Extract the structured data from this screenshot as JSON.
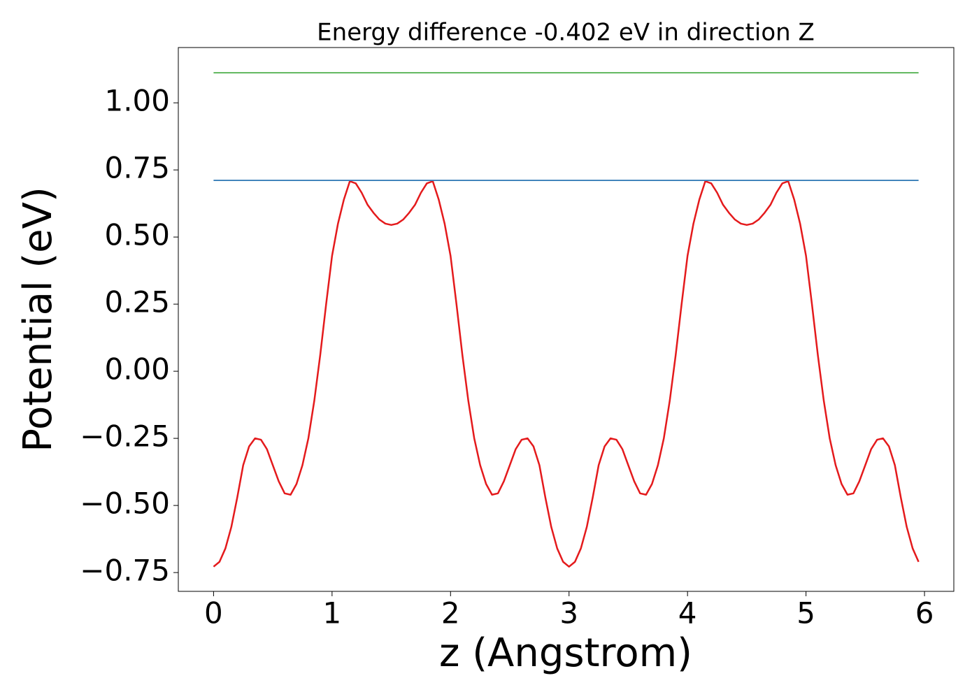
{
  "chart_data": {
    "type": "line",
    "title": "Energy difference -0.402 eV in direction Z",
    "xlabel": "z (Angstrom)",
    "ylabel": "Potential (eV)",
    "xlim": [
      -0.2975,
      6.2475
    ],
    "ylim": [
      -0.82,
      1.206
    ],
    "xticks": [
      0,
      1,
      2,
      3,
      4,
      5,
      6
    ],
    "yticks": [
      {
        "value": -0.75,
        "label": "−0.75"
      },
      {
        "value": -0.5,
        "label": "−0.50"
      },
      {
        "value": -0.25,
        "label": "−0.25"
      },
      {
        "value": 0,
        "label": "0.00"
      },
      {
        "value": 0.25,
        "label": "0.25"
      },
      {
        "value": 0.5,
        "label": "0.50"
      },
      {
        "value": 0.75,
        "label": "0.75"
      },
      {
        "value": 1,
        "label": "1.00"
      }
    ],
    "grid": false,
    "series": [
      {
        "color": "#e41a1c",
        "x": [
          0,
          0.05,
          0.1,
          0.15,
          0.2,
          0.25,
          0.3,
          0.35,
          0.4,
          0.45,
          0.5,
          0.55,
          0.6,
          0.65,
          0.7,
          0.75,
          0.8,
          0.85,
          0.9,
          0.95,
          1,
          1.05,
          1.1,
          1.15,
          1.2,
          1.25,
          1.3,
          1.35,
          1.4,
          1.45,
          1.5,
          1.55,
          1.6,
          1.65,
          1.7,
          1.75,
          1.8,
          1.85,
          1.9,
          1.95,
          2,
          2.05,
          2.1,
          2.15,
          2.2,
          2.25,
          2.3,
          2.35,
          2.4,
          2.45,
          2.5,
          2.55,
          2.6,
          2.65,
          2.7,
          2.75,
          2.8,
          2.85,
          2.9,
          2.95,
          3,
          3.05,
          3.1,
          3.15,
          3.2,
          3.25,
          3.3,
          3.35,
          3.4,
          3.45,
          3.5,
          3.55,
          3.6,
          3.65,
          3.7,
          3.75,
          3.8,
          3.85,
          3.9,
          3.95,
          4,
          4.05,
          4.1,
          4.15,
          4.2,
          4.25,
          4.3,
          4.35,
          4.4,
          4.45,
          4.5,
          4.55,
          4.6,
          4.65,
          4.7,
          4.75,
          4.8,
          4.85,
          4.9,
          4.95,
          5,
          5.05,
          5.1,
          5.15,
          5.2,
          5.25,
          5.3,
          5.35,
          5.4,
          5.45,
          5.5,
          5.55,
          5.6,
          5.65,
          5.7,
          5.75,
          5.8,
          5.85,
          5.9,
          5.95
        ],
        "values": [
          -0.728,
          -0.71,
          -0.66,
          -0.58,
          -0.47,
          -0.35,
          -0.28,
          -0.25,
          -0.255,
          -0.29,
          -0.35,
          -0.41,
          -0.455,
          -0.46,
          -0.42,
          -0.35,
          -0.25,
          -0.11,
          0.06,
          0.25,
          0.43,
          0.55,
          0.64,
          0.708,
          0.7,
          0.665,
          0.62,
          0.59,
          0.565,
          0.55,
          0.545,
          0.55,
          0.565,
          0.59,
          0.62,
          0.665,
          0.7,
          0.708,
          0.64,
          0.55,
          0.43,
          0.25,
          0.06,
          -0.11,
          -0.25,
          -0.35,
          -0.42,
          -0.46,
          -0.455,
          -0.41,
          -0.35,
          -0.29,
          -0.255,
          -0.25,
          -0.28,
          -0.35,
          -0.47,
          -0.58,
          -0.66,
          -0.71,
          -0.728,
          -0.71,
          -0.66,
          -0.58,
          -0.47,
          -0.35,
          -0.28,
          -0.25,
          -0.255,
          -0.29,
          -0.35,
          -0.41,
          -0.455,
          -0.46,
          -0.42,
          -0.35,
          -0.25,
          -0.11,
          0.06,
          0.25,
          0.43,
          0.55,
          0.64,
          0.708,
          0.7,
          0.665,
          0.62,
          0.59,
          0.565,
          0.55,
          0.545,
          0.55,
          0.565,
          0.59,
          0.62,
          0.665,
          0.7,
          0.708,
          0.64,
          0.55,
          0.43,
          0.25,
          0.06,
          -0.11,
          -0.25,
          -0.35,
          -0.42,
          -0.46,
          -0.455,
          -0.41,
          -0.35,
          -0.29,
          -0.255,
          -0.25,
          -0.28,
          -0.35,
          -0.47,
          -0.58,
          -0.66,
          -0.71
        ]
      },
      {
        "color": "#377eb8",
        "x": [
          0,
          5.95
        ],
        "values": [
          0.711,
          0.711
        ]
      },
      {
        "color": "#4daf4a",
        "x": [
          0,
          5.95
        ],
        "values": [
          1.112,
          1.112
        ]
      }
    ]
  }
}
